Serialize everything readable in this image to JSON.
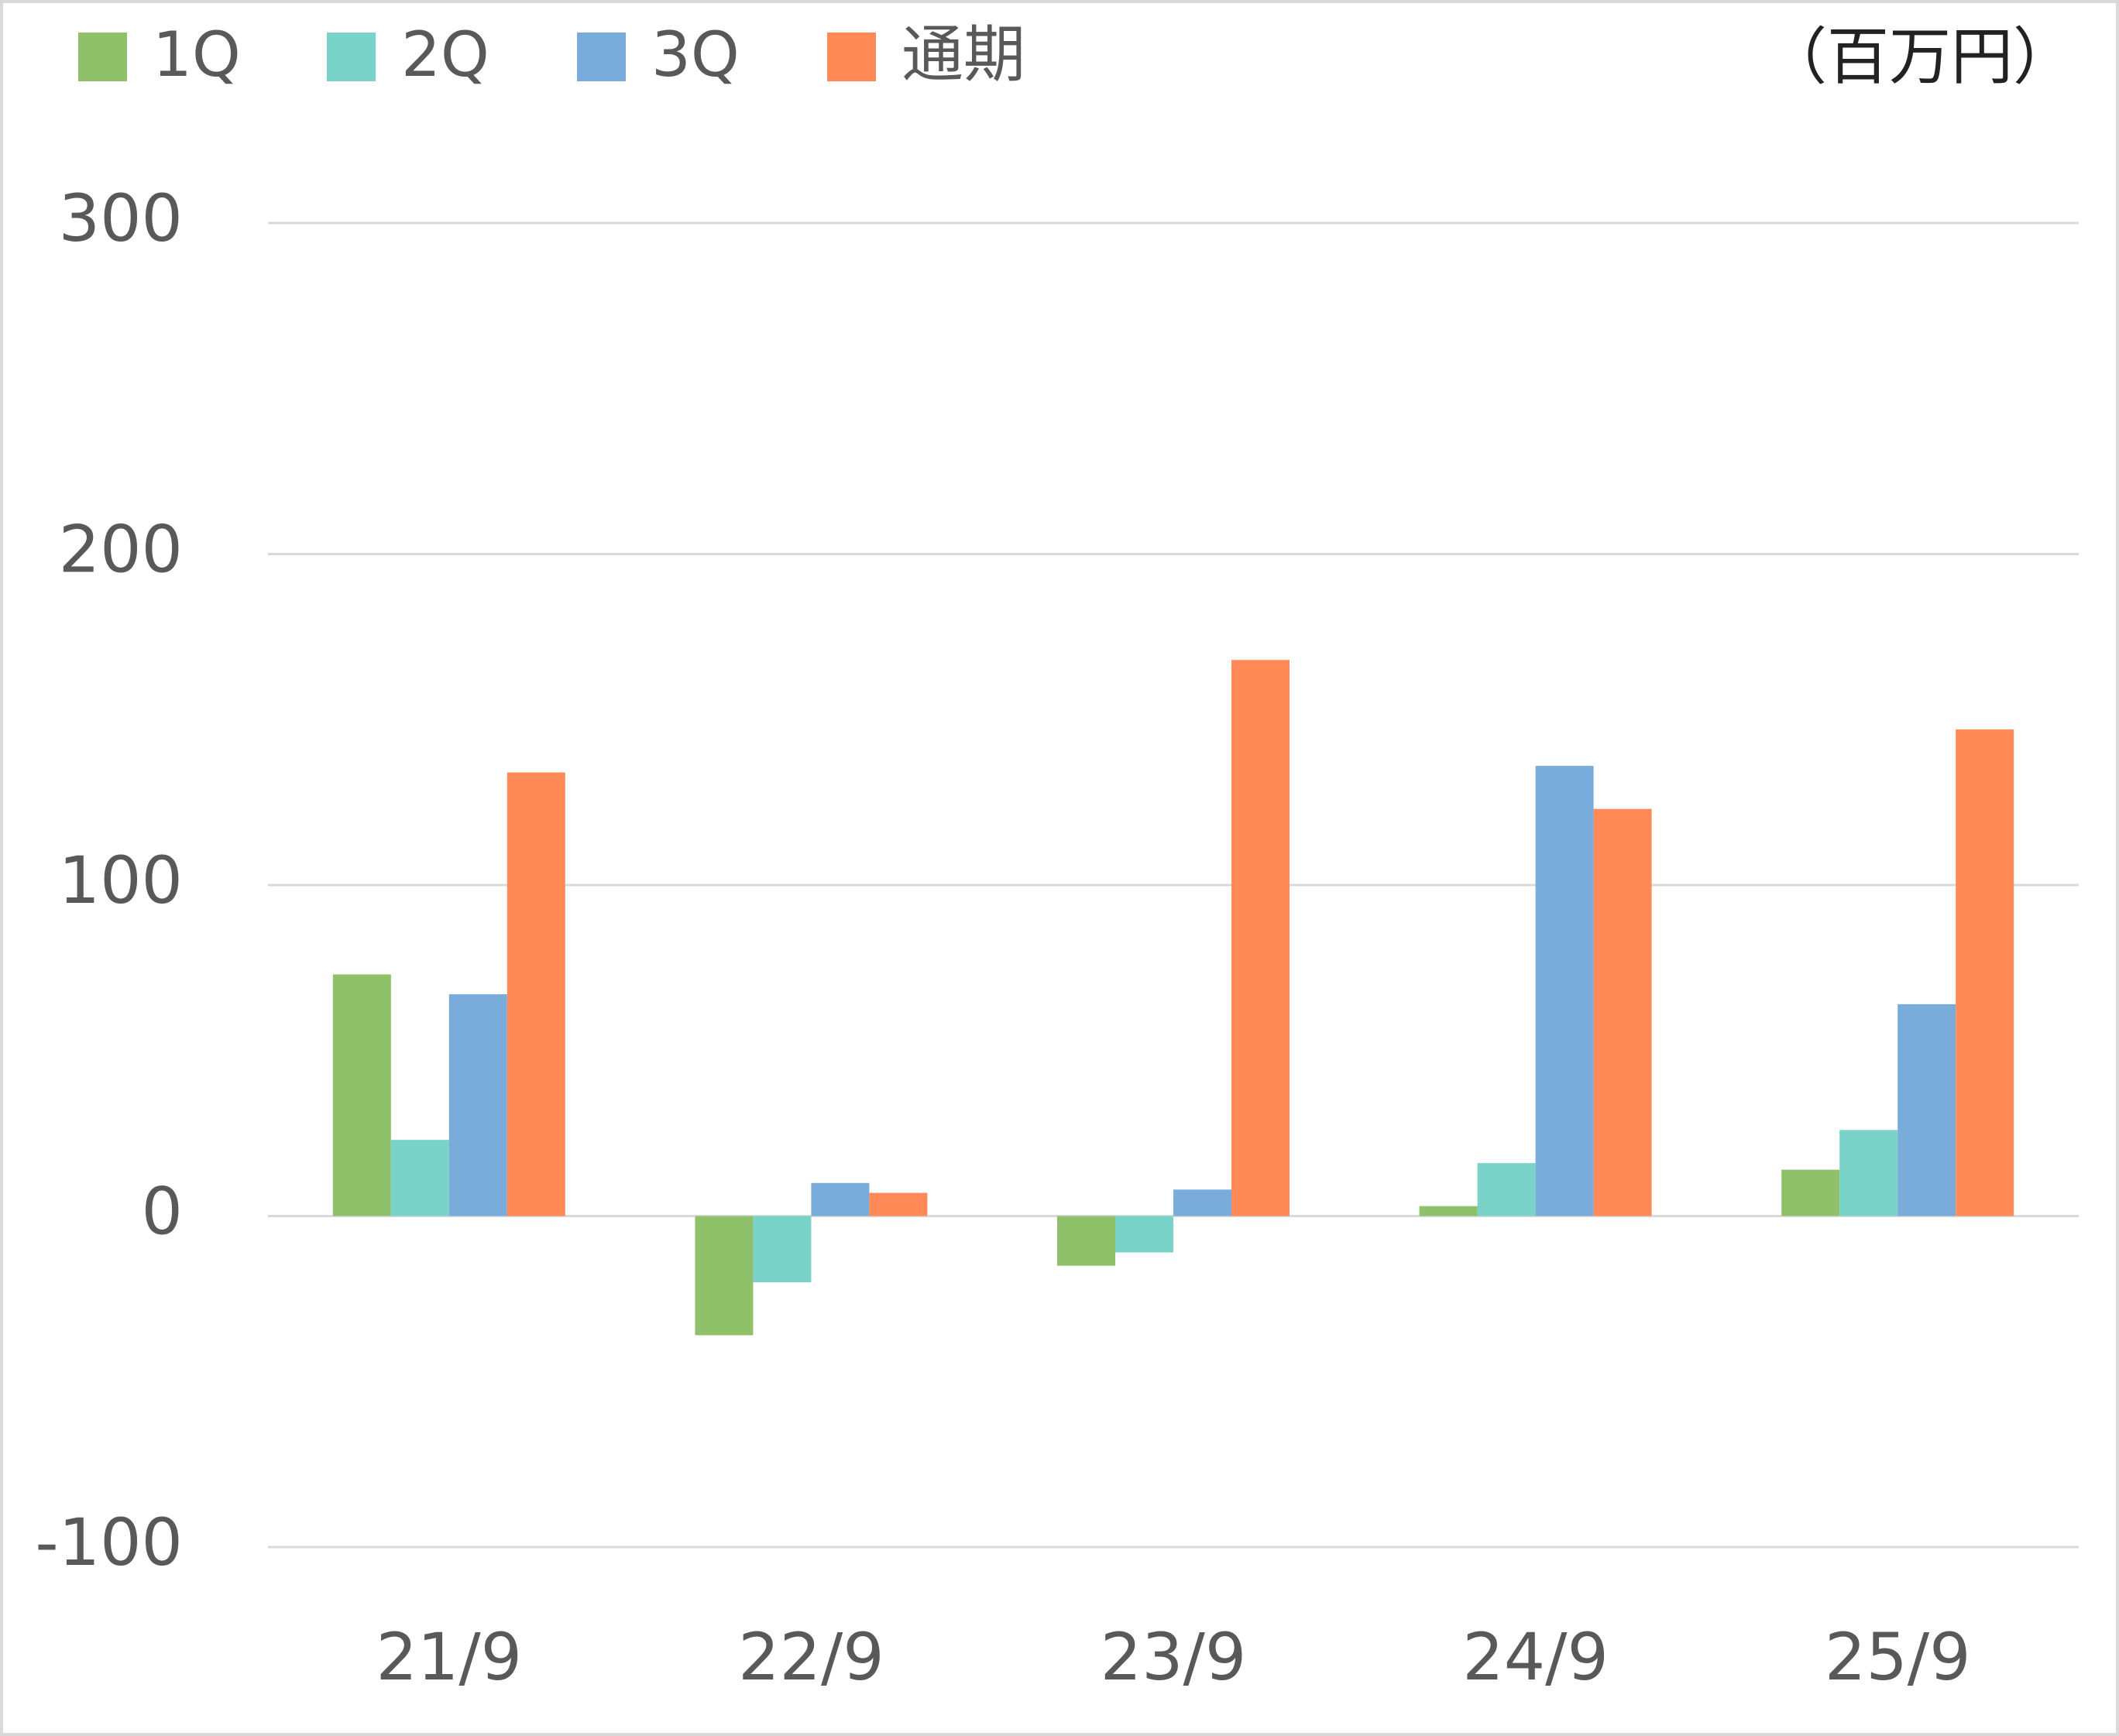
{
  "chart_data": {
    "type": "bar",
    "unit": "（百万円）",
    "categories": [
      "21/9",
      "22/9",
      "23/9",
      "24/9",
      "25/9"
    ],
    "series": [
      {
        "name": "1Q",
        "color": "#8fc16a",
        "values": [
          73,
          -36,
          -15,
          3,
          14
        ]
      },
      {
        "name": "2Q",
        "color": "#7ad3c8",
        "values": [
          23,
          -20,
          -11,
          16,
          26
        ]
      },
      {
        "name": "3Q",
        "color": "#7aacdb",
        "values": [
          67,
          10,
          8,
          136,
          64
        ]
      },
      {
        "name": "通期",
        "color": "#ff8a57",
        "values": [
          134,
          7,
          168,
          123,
          147
        ]
      }
    ],
    "ylim": [
      -100,
      300
    ],
    "yticks": [
      -100,
      0,
      100,
      200,
      300
    ],
    "grid": true,
    "legend": "top"
  }
}
